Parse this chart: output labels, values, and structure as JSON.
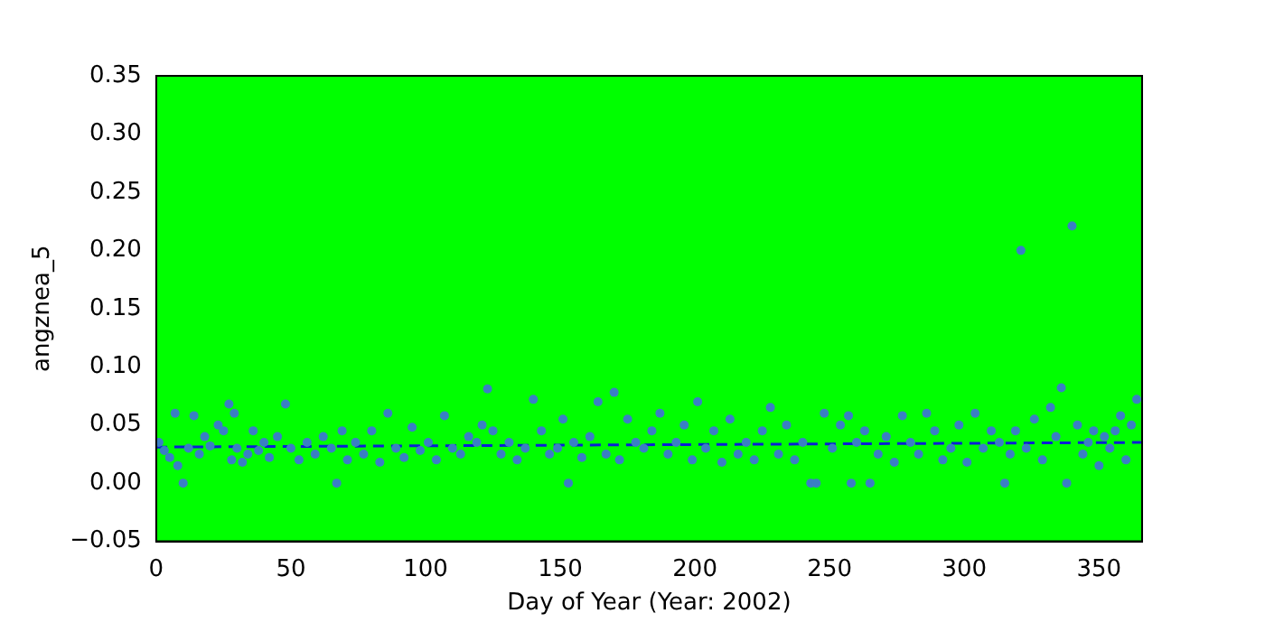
{
  "chart_data": {
    "type": "scatter",
    "xlabel": "Day of Year (Year: 2002)",
    "ylabel": "angznea_5",
    "xlim": [
      0,
      366
    ],
    "ylim": [
      -0.05,
      0.35
    ],
    "xticks": [
      0,
      50,
      100,
      150,
      200,
      250,
      300,
      350
    ],
    "yticks": [
      {
        "value": -0.05,
        "label": "−0.05"
      },
      {
        "value": 0,
        "label": "0.00"
      },
      {
        "value": 0.05,
        "label": "0.05"
      },
      {
        "value": 0.1,
        "label": "0.10"
      },
      {
        "value": 0.15,
        "label": "0.15"
      },
      {
        "value": 0.2,
        "label": "0.20"
      },
      {
        "value": 0.25,
        "label": "0.25"
      },
      {
        "value": 0.3,
        "label": "0.30"
      },
      {
        "value": 0.35,
        "label": "0.35"
      }
    ],
    "grid": false,
    "legend": false,
    "marker": "circle",
    "series": [
      {
        "color": "#3a7fc4",
        "x": [
          1,
          3,
          5,
          7,
          8,
          10,
          12,
          14,
          16,
          18,
          20,
          23,
          25,
          27,
          28,
          29,
          30,
          32,
          34,
          36,
          38,
          40,
          42,
          45,
          48,
          50,
          53,
          56,
          59,
          62,
          65,
          67,
          69,
          71,
          74,
          77,
          80,
          83,
          86,
          89,
          92,
          95,
          98,
          101,
          104,
          107,
          110,
          113,
          116,
          119,
          121,
          123,
          125,
          128,
          131,
          134,
          137,
          140,
          143,
          146,
          149,
          151,
          153,
          155,
          158,
          161,
          164,
          167,
          170,
          172,
          175,
          178,
          181,
          184,
          187,
          190,
          193,
          196,
          199,
          201,
          204,
          207,
          210,
          213,
          216,
          219,
          222,
          225,
          228,
          231,
          234,
          237,
          240,
          243,
          245,
          248,
          251,
          254,
          257,
          258,
          260,
          263,
          265,
          268,
          271,
          274,
          277,
          280,
          283,
          286,
          289,
          292,
          295,
          298,
          301,
          304,
          307,
          310,
          313,
          315,
          317,
          319,
          321,
          323,
          326,
          329,
          332,
          334,
          336,
          338,
          340,
          342,
          344,
          346,
          348,
          350,
          352,
          354,
          356,
          358,
          360,
          362,
          364
        ],
        "values": [
          0.035,
          0.028,
          0.022,
          0.06,
          0.015,
          0.0,
          0.03,
          0.058,
          0.025,
          0.04,
          0.032,
          0.05,
          0.045,
          0.068,
          0.02,
          0.06,
          0.03,
          0.018,
          0.025,
          0.045,
          0.028,
          0.035,
          0.022,
          0.04,
          0.068,
          0.03,
          0.02,
          0.035,
          0.025,
          0.04,
          0.03,
          0.0,
          0.045,
          0.02,
          0.035,
          0.025,
          0.045,
          0.018,
          0.06,
          0.03,
          0.022,
          0.048,
          0.028,
          0.035,
          0.02,
          0.058,
          0.03,
          0.025,
          0.04,
          0.035,
          0.05,
          0.081,
          0.045,
          0.025,
          0.035,
          0.02,
          0.03,
          0.072,
          0.045,
          0.025,
          0.03,
          0.055,
          0.0,
          0.035,
          0.022,
          0.04,
          0.07,
          0.025,
          0.078,
          0.02,
          0.055,
          0.035,
          0.03,
          0.045,
          0.06,
          0.025,
          0.035,
          0.05,
          0.02,
          0.07,
          0.03,
          0.045,
          0.018,
          0.055,
          0.025,
          0.035,
          0.02,
          0.045,
          0.065,
          0.025,
          0.05,
          0.02,
          0.035,
          0.0,
          0.0,
          0.06,
          0.03,
          0.05,
          0.058,
          0.0,
          0.035,
          0.045,
          0.0,
          0.025,
          0.04,
          0.018,
          0.058,
          0.035,
          0.025,
          0.06,
          0.045,
          0.02,
          0.03,
          0.05,
          0.018,
          0.06,
          0.03,
          0.045,
          0.035,
          0.0,
          0.025,
          0.045,
          0.2,
          0.03,
          0.055,
          0.02,
          0.065,
          0.04,
          0.082,
          0.0,
          0.221,
          0.05,
          0.025,
          0.035,
          0.045,
          0.015,
          0.04,
          0.03,
          0.045,
          0.058,
          0.02,
          0.05,
          0.072
        ]
      },
      {
        "type": "line",
        "color": "#0a1fd6",
        "line_style": "dashed",
        "marker": "none",
        "x": [
          0,
          366
        ],
        "values": [
          0.031,
          0.035
        ]
      }
    ]
  }
}
